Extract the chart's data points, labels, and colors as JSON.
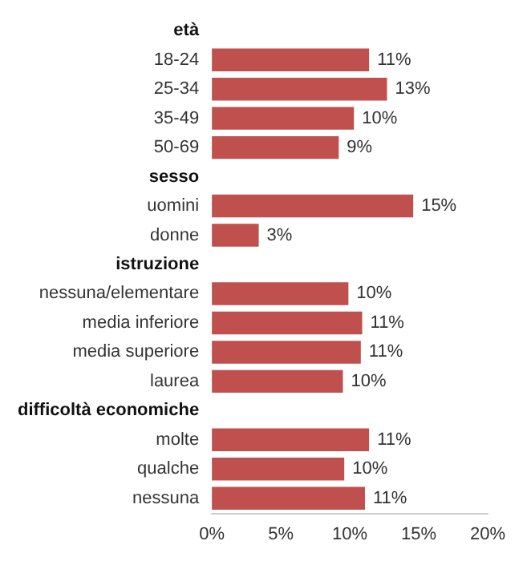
{
  "chart_data": {
    "type": "bar",
    "orientation": "horizontal",
    "categories": [
      "età",
      "18-24",
      "25-34",
      "35-49",
      "50-69",
      "sesso",
      "uomini",
      "donne",
      "istruzione",
      "nessuna/elementare",
      "media inferiore",
      "media superiore",
      "laurea",
      "difficoltà economiche",
      "molte",
      "qualche",
      "nessuna"
    ],
    "values": [
      null,
      11.4,
      12.7,
      10.3,
      9.2,
      null,
      14.6,
      3.4,
      null,
      9.9,
      10.9,
      10.8,
      9.5,
      null,
      11.4,
      9.6,
      11.1
    ],
    "value_labels": [
      null,
      "11%",
      "13%",
      "10%",
      "9%",
      null,
      "15%",
      "3%",
      null,
      "10%",
      "11%",
      "11%",
      "10%",
      null,
      "11%",
      "10%",
      "11%"
    ],
    "color": "#c0504d",
    "xlim": [
      0,
      20
    ],
    "xticks": [
      {
        "value": 0,
        "label": "0%"
      },
      {
        "value": 5,
        "label": "5%"
      },
      {
        "value": 10,
        "label": "10%"
      },
      {
        "value": 15,
        "label": "15%"
      },
      {
        "value": 20,
        "label": "20%"
      }
    ],
    "grid": false
  }
}
